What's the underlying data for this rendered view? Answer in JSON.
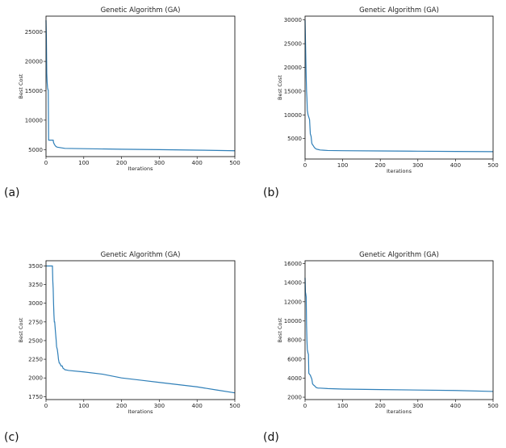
{
  "chart_data": [
    {
      "type": "line",
      "panel_label": "(a)",
      "title": "Genetic Algorithm (GA)",
      "xlabel": "Iterations",
      "ylabel": "Best Cost",
      "xlim": [
        0,
        500
      ],
      "ylim": [
        3800,
        27700
      ],
      "xticks": [
        0,
        100,
        200,
        300,
        400,
        500
      ],
      "yticks": [
        5000,
        10000,
        15000,
        20000,
        25000
      ],
      "grid": false,
      "color": "#2f7fb8",
      "x": [
        0,
        1,
        2,
        3,
        4,
        5,
        6,
        7,
        8,
        19,
        20,
        22,
        25,
        28,
        30,
        40,
        50,
        100,
        200,
        300,
        400,
        500
      ],
      "y": [
        27000,
        24000,
        18000,
        16500,
        15600,
        15200,
        15100,
        6600,
        6600,
        6600,
        6200,
        5900,
        5600,
        5450,
        5400,
        5300,
        5200,
        5150,
        5050,
        4980,
        4900,
        4800
      ]
    },
    {
      "type": "line",
      "panel_label": "(b)",
      "title": "Genetic Algorithm (GA)",
      "xlabel": "Iterations",
      "ylabel": "Best Cost",
      "xlim": [
        0,
        500
      ],
      "ylim": [
        700,
        30800
      ],
      "xticks": [
        0,
        100,
        200,
        300,
        400,
        500
      ],
      "yticks": [
        5000,
        10000,
        15000,
        20000,
        25000,
        30000
      ],
      "grid": false,
      "color": "#2f7fb8",
      "x": [
        0,
        1,
        2,
        3,
        4,
        5,
        6,
        8,
        10,
        12,
        14,
        16,
        18,
        20,
        22,
        25,
        28,
        30,
        35,
        40,
        50,
        60,
        100,
        200,
        300,
        400,
        500
      ],
      "y": [
        30000,
        26000,
        22000,
        18000,
        15000,
        13500,
        11000,
        10000,
        9500,
        9000,
        6000,
        5500,
        4000,
        3700,
        3500,
        3100,
        2900,
        2800,
        2700,
        2600,
        2550,
        2500,
        2450,
        2400,
        2350,
        2300,
        2250
      ]
    },
    {
      "type": "line",
      "panel_label": "(c)",
      "title": "Genetic Algorithm (GA)",
      "xlabel": "Iterations",
      "ylabel": "Best Cost",
      "xlim": [
        0,
        500
      ],
      "ylim": [
        1710,
        3570
      ],
      "xticks": [
        0,
        100,
        200,
        300,
        400,
        500
      ],
      "yticks": [
        1750,
        2000,
        2250,
        2500,
        2750,
        3000,
        3250,
        3500
      ],
      "grid": false,
      "color": "#2f7fb8",
      "x": [
        0,
        17,
        18,
        19,
        20,
        21,
        22,
        23,
        25,
        27,
        28,
        30,
        32,
        33,
        35,
        36,
        38,
        40,
        43,
        45,
        48,
        50,
        55,
        60,
        100,
        150,
        200,
        250,
        300,
        350,
        400,
        450,
        500
      ],
      "y": [
        3500,
        3500,
        3300,
        3200,
        3000,
        2850,
        2750,
        2750,
        2620,
        2500,
        2420,
        2380,
        2300,
        2250,
        2200,
        2200,
        2180,
        2160,
        2160,
        2130,
        2120,
        2110,
        2105,
        2100,
        2080,
        2050,
        2000,
        1970,
        1940,
        1910,
        1880,
        1840,
        1800
      ]
    },
    {
      "type": "line",
      "panel_label": "(d)",
      "title": "Genetic Algorithm (GA)",
      "xlabel": "Iterations",
      "ylabel": "Best Cost",
      "xlim": [
        0,
        500
      ],
      "ylim": [
        1750,
        16300
      ],
      "xticks": [
        0,
        100,
        200,
        300,
        400,
        500
      ],
      "yticks": [
        2000,
        4000,
        6000,
        8000,
        10000,
        12000,
        14000,
        16000
      ],
      "grid": false,
      "color": "#2f7fb8",
      "x": [
        0,
        1,
        2,
        3,
        4,
        5,
        6,
        7,
        8,
        9,
        10,
        12,
        14,
        16,
        18,
        20,
        22,
        25,
        30,
        35,
        40,
        60,
        100,
        200,
        300,
        400,
        500
      ],
      "y": [
        14500,
        13000,
        12800,
        12500,
        9500,
        8000,
        7000,
        6800,
        6600,
        6500,
        4500,
        4400,
        4300,
        4100,
        3900,
        3400,
        3300,
        3200,
        3000,
        2950,
        2950,
        2900,
        2850,
        2800,
        2750,
        2700,
        2600
      ]
    }
  ]
}
